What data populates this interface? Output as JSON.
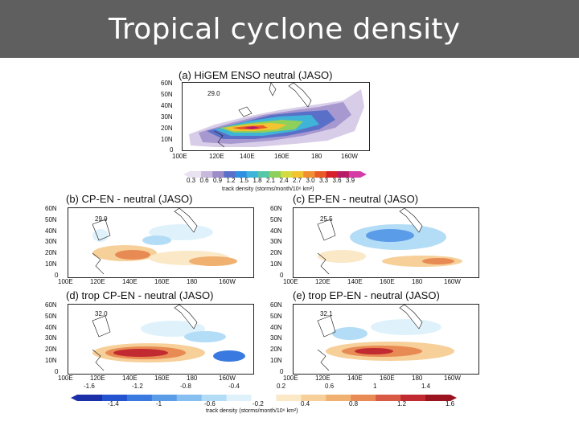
{
  "slide": {
    "title": "Tropical cyclone density"
  },
  "panels": [
    {
      "id": "a",
      "title": "(a)  HiGEM ENSO neutral (JASO)",
      "inset": "29.0"
    },
    {
      "id": "b",
      "title": "(b)   CP-EN - neutral (JASO)",
      "inset": "29.9"
    },
    {
      "id": "c",
      "title": "(c)   EP-EN - neutral (JASO)",
      "inset": "25.5"
    },
    {
      "id": "d",
      "title": "(d)  trop CP-EN - neutral (JASO)",
      "inset": "32.0"
    },
    {
      "id": "e",
      "title": "(e)  trop EP-EN - neutral (JASO)",
      "inset": "32.1"
    }
  ],
  "axes": {
    "lat_ticks": [
      "60N",
      "50N",
      "40N",
      "30N",
      "20N",
      "10N",
      "0"
    ],
    "lon_ticks": [
      "100E",
      "120E",
      "140E",
      "160E",
      "180",
      "160W"
    ]
  },
  "colorbar_top": {
    "ticks": [
      "0.3",
      "0.6",
      "0.9",
      "1.2",
      "1.5",
      "1.8",
      "2.1",
      "2.4",
      "2.7",
      "3.0",
      "3.3",
      "3.6",
      "3.9"
    ],
    "label": "track density (storms/month/10⁶ km²)",
    "colors": [
      "#e8e2f1",
      "#c8b8dc",
      "#9c8cc8",
      "#5a70c8",
      "#2f8fe0",
      "#40b4d8",
      "#56c8a8",
      "#8fd05a",
      "#d2dc40",
      "#f2c430",
      "#f09030",
      "#e85a28",
      "#d8202a",
      "#b81c66",
      "#d43ca8"
    ]
  },
  "colorbar_bottom": {
    "upper_ticks": [
      "-1.6",
      "-1.2",
      "-0.8",
      "-0.4",
      "0.2",
      "0.6",
      "1",
      "1.4"
    ],
    "lower_ticks": [
      "-1.4",
      "-1",
      "-0.6",
      "-0.2",
      "0.4",
      "0.8",
      "1.2",
      "1.6"
    ],
    "label": "track density (storms/month/10⁶ km²)",
    "colors": [
      "#1a2fa8",
      "#2453d0",
      "#3a7ae0",
      "#5b9ce8",
      "#86bff0",
      "#b3dcf6",
      "#dff2fb",
      "#ffffff",
      "#fbe8c6",
      "#f7cf98",
      "#f0b070",
      "#e88a54",
      "#d85a44",
      "#c02a30",
      "#9a1420"
    ]
  }
}
